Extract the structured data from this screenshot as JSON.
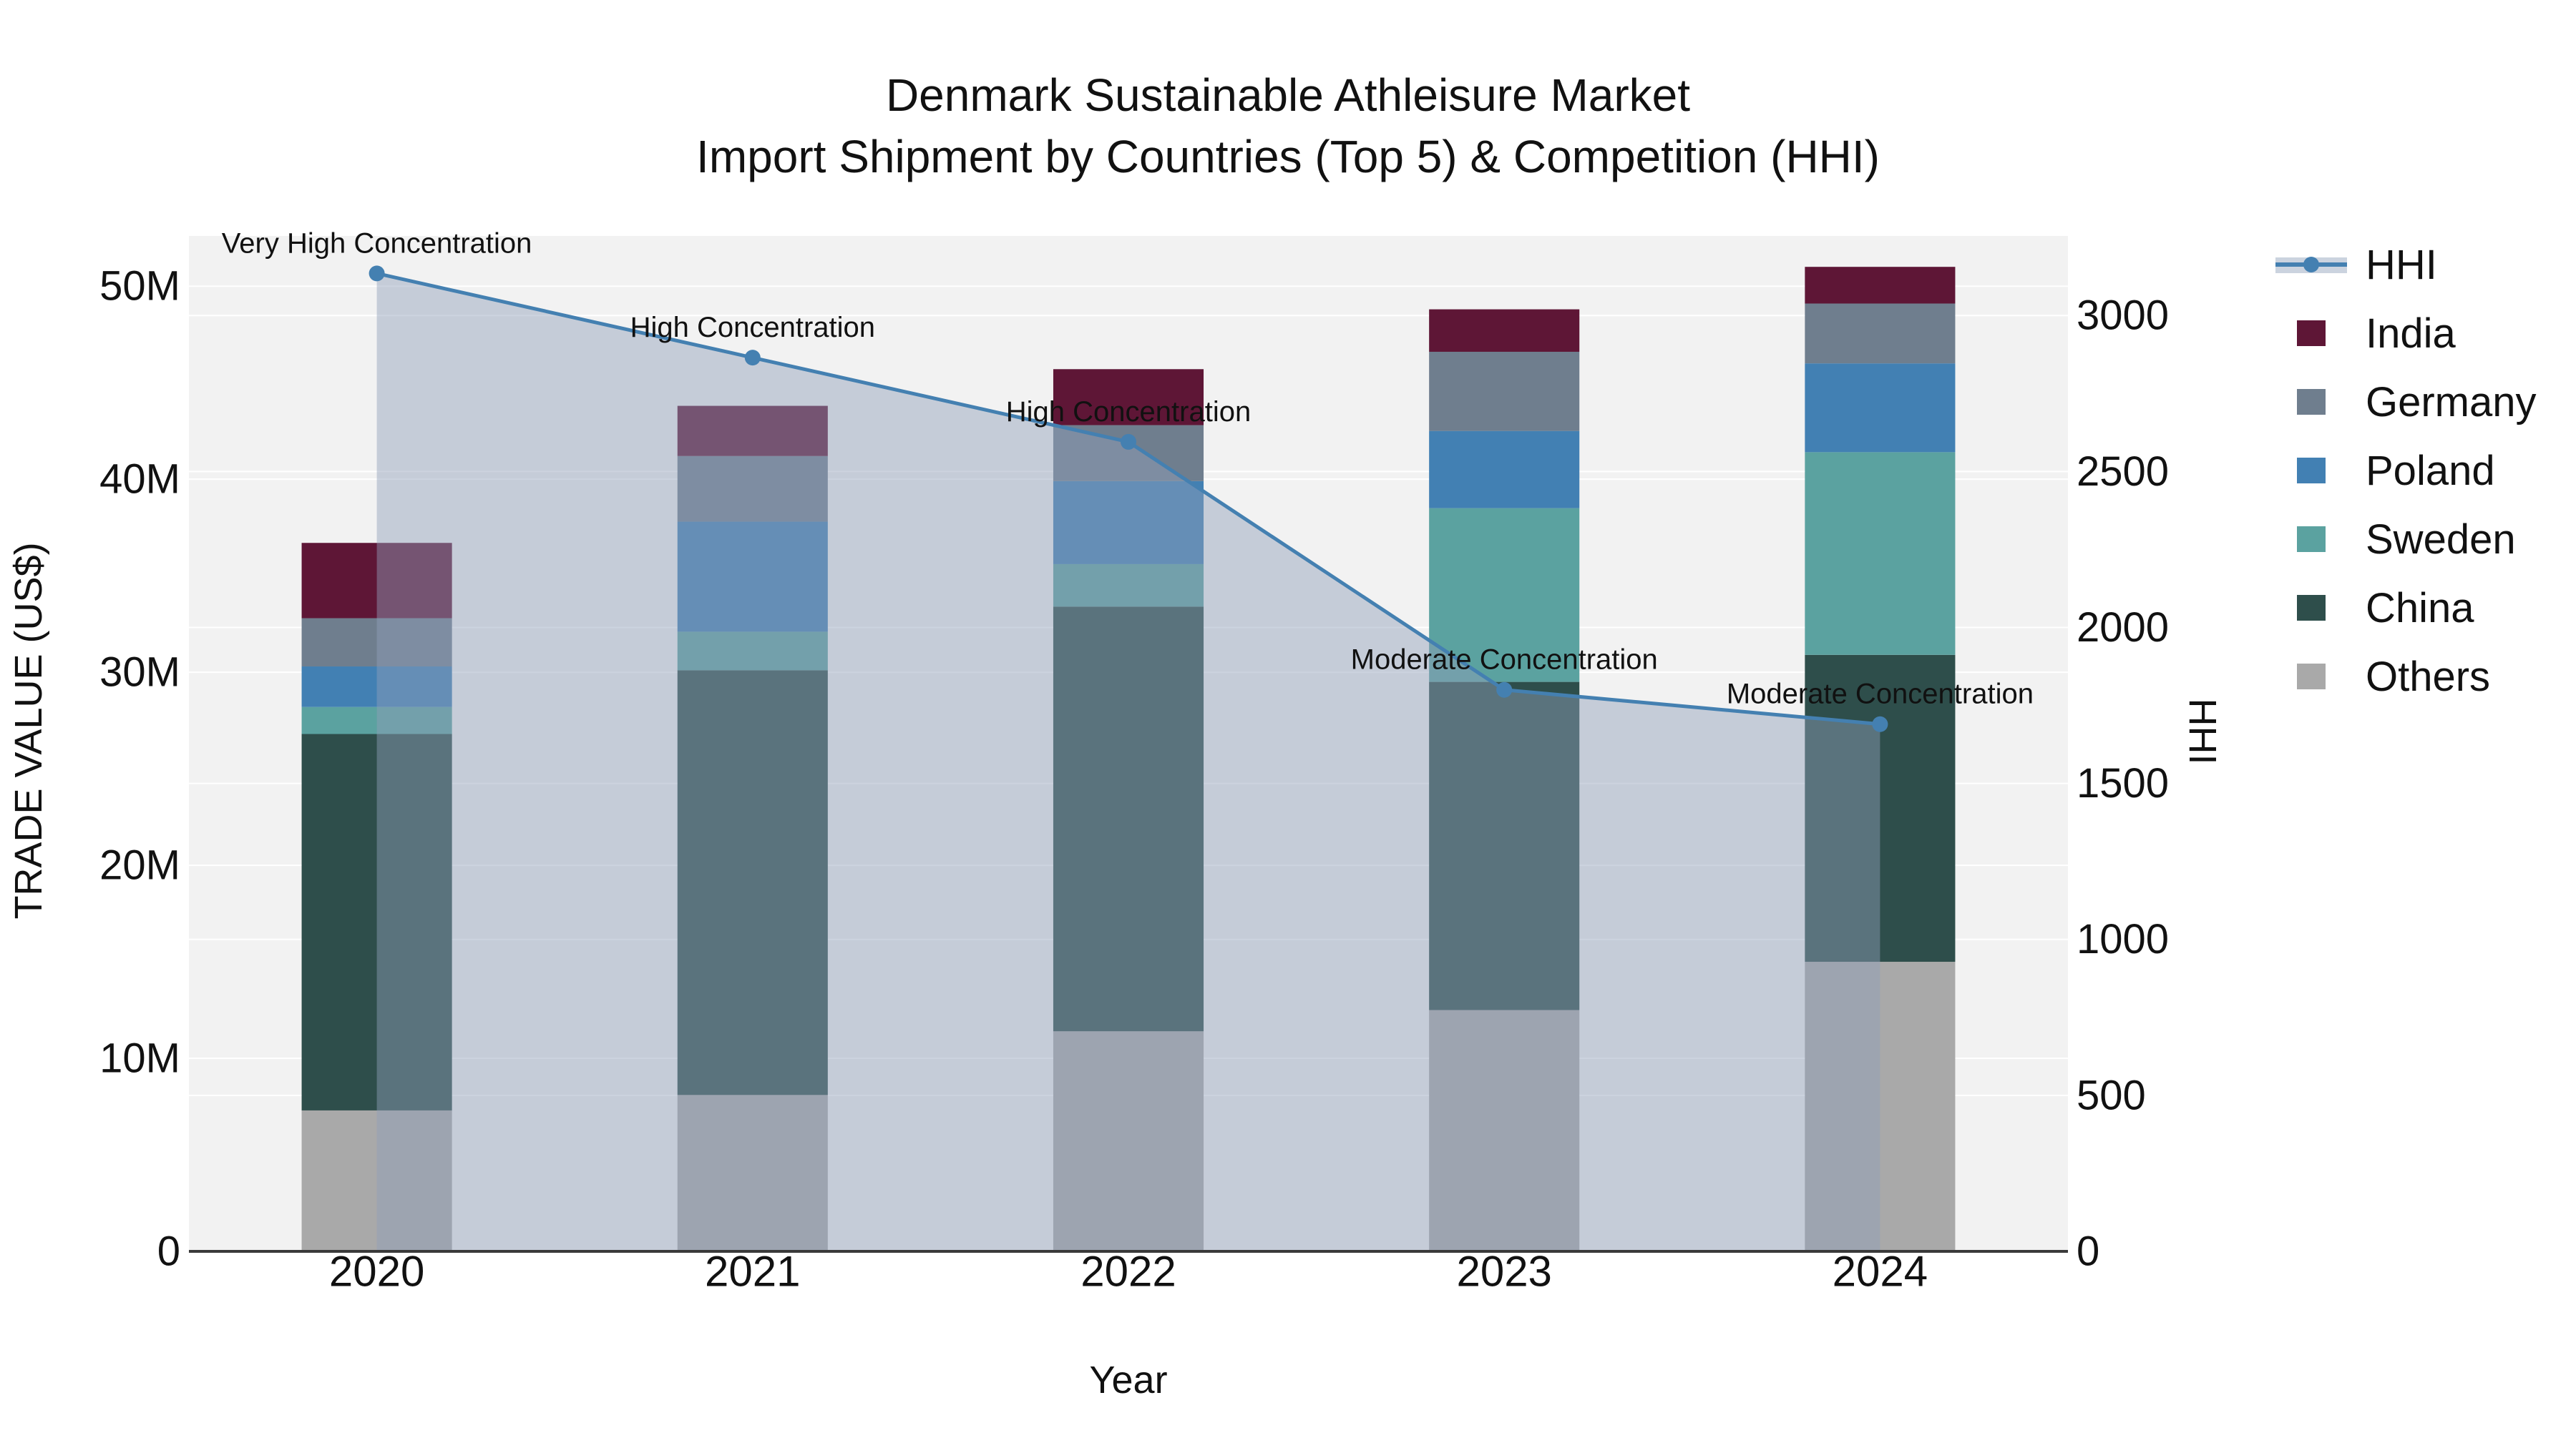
{
  "title": {
    "line1": "Denmark Sustainable Athleisure Market",
    "line2": "Import Shipment by Countries (Top 5) & Competition (HHI)"
  },
  "colors": {
    "plot_background": "#f2f2f2",
    "gridline": "#ffffff",
    "axis_line": "#3a3a3a",
    "text": "#111111",
    "hhi_line": "#4480b1",
    "hhi_area_fill": "rgba(143,160,186,0.46)",
    "hhi_legend_band": "#cbd3df"
  },
  "chart_data": {
    "type": "bar+line",
    "categories": [
      "2020",
      "2021",
      "2022",
      "2023",
      "2024"
    ],
    "bar_value_unit": "US$ millions",
    "stack_order_bottom_to_top": [
      "Others",
      "China",
      "Sweden",
      "Poland",
      "Germany",
      "India"
    ],
    "bar_series": [
      {
        "name": "Others",
        "color": "#a9a9a9",
        "values_musd": [
          7.3,
          8.1,
          11.4,
          12.5,
          15.0
        ]
      },
      {
        "name": "China",
        "color": "#2e4e4b",
        "values_musd": [
          19.5,
          22.0,
          22.0,
          17.0,
          15.9
        ]
      },
      {
        "name": "Sweden",
        "color": "#5ba2a0",
        "values_musd": [
          1.4,
          2.0,
          2.2,
          9.0,
          10.5
        ]
      },
      {
        "name": "Poland",
        "color": "#4280b3",
        "values_musd": [
          2.1,
          5.7,
          4.3,
          4.0,
          4.6
        ]
      },
      {
        "name": "Germany",
        "color": "#6f7e8e",
        "values_musd": [
          2.5,
          3.4,
          2.9,
          4.1,
          3.1
        ]
      },
      {
        "name": "India",
        "color": "#5e1636",
        "values_musd": [
          3.9,
          2.6,
          2.9,
          2.2,
          1.9
        ]
      }
    ],
    "line_series": {
      "name": "HHI",
      "values": [
        3135,
        2865,
        2595,
        1800,
        1690
      ]
    },
    "annotations": [
      {
        "category": "2020",
        "text": "Very High Concentration"
      },
      {
        "category": "2021",
        "text": "High Concentration"
      },
      {
        "category": "2022",
        "text": "High Concentration"
      },
      {
        "category": "2023",
        "text": "Moderate Concentration"
      },
      {
        "category": "2024",
        "text": "Moderate Concentration"
      }
    ],
    "axes": {
      "x": {
        "title": "Year"
      },
      "y_left": {
        "title": "TRADE VALUE (US$)",
        "tick_values_musd": [
          0,
          10,
          20,
          30,
          40,
          50
        ],
        "tick_labels": [
          "0",
          "10M",
          "20M",
          "30M",
          "40M",
          "50M"
        ],
        "max_musd": 52.6
      },
      "y_right": {
        "title": "HHI",
        "tick_values": [
          0,
          500,
          1000,
          1500,
          2000,
          2500,
          3000
        ],
        "tick_labels": [
          "0",
          "500",
          "1000",
          "1500",
          "2000",
          "2500",
          "3000"
        ],
        "max": 3255
      }
    },
    "layout": {
      "grid": true,
      "legend_position": "right",
      "bar_gap_fraction": 0.6
    }
  },
  "legend": {
    "items": [
      {
        "label": "HHI",
        "type": "line",
        "color": "#4480b1"
      },
      {
        "label": "India",
        "type": "square",
        "color": "#5e1636"
      },
      {
        "label": "Germany",
        "type": "square",
        "color": "#6f7e8e"
      },
      {
        "label": "Poland",
        "type": "square",
        "color": "#4280b3"
      },
      {
        "label": "Sweden",
        "type": "square",
        "color": "#5ba2a0"
      },
      {
        "label": "China",
        "type": "square",
        "color": "#2e4e4b"
      },
      {
        "label": "Others",
        "type": "square",
        "color": "#a9a9a9"
      }
    ]
  }
}
